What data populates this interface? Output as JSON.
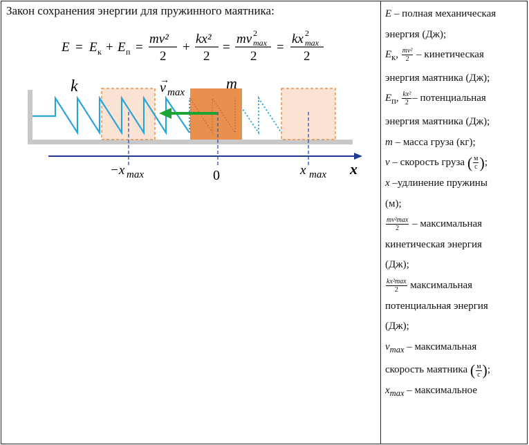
{
  "heading": "Закон сохранения энергии для пружинного маятника:",
  "formula": {
    "lhs": "E",
    "eq": "=",
    "ek": "E",
    "ek_sub": "к",
    "plus": "+",
    "ep": "E",
    "ep_sub": "п",
    "f1_num": "mv²",
    "f1_den": "2",
    "f2_num": "kx²",
    "f2_den": "2",
    "f3_num": "mv",
    "f3_sup": "2",
    "f3_sub": "max",
    "f3_den": "2",
    "f4_num": "kx",
    "f4_sup": "2",
    "f4_sub": "max",
    "f4_den": "2"
  },
  "figure": {
    "label_k": "k",
    "label_m": "m",
    "label_v": "v",
    "label_v_sub": "max",
    "label_neg_xmax": "−x",
    "label_neg_xmax_sub": "max",
    "label_zero": "0",
    "label_xmax": "x",
    "label_xmax_sub": "max",
    "label_axis": "x",
    "colors": {
      "spring": "#2aa4d8",
      "spring_light": "#7fc3e0",
      "mass": "#e9904f",
      "mass_dark": "#e08a3c",
      "ghost_fill": "#fbe3d3",
      "ghost_border": "#e9904f",
      "arrow": "#1aa436",
      "axis": "#1f3a8f",
      "guide": "#2a55b0",
      "wall": "#c8c8c8"
    }
  },
  "legend": {
    "E_desc": "– полная механическая",
    "E_desc2": "энергия (Дж);",
    "Ek_sym": "E",
    "Ek_sub": "к",
    "Ek_frac_num": "mv²",
    "Ek_frac_den": "2",
    "Ek_desc": "– кинетическая",
    "Ek_desc2": "энергия маятника (Дж);",
    "Ep_sym": "E",
    "Ep_sub": "п",
    "Ep_frac_num": "kx²",
    "Ep_frac_den": "2",
    "Ep_desc": "– потенциальная",
    "Ep_desc2": "энергия маятника (Дж);",
    "m_sym": "m",
    "m_desc": "– масса груза (кг);",
    "v_sym": "v",
    "v_desc": "– скорость груза",
    "unit_num": "м",
    "unit_den": "с",
    "x_sym": "x",
    "x_desc": "–удлинение пружины",
    "x_desc2": "(м);",
    "kmax_frac_num": "mv²max",
    "kmax_frac_den": "2",
    "kmax_desc": "– максимальная",
    "kmax_desc2": "кинетическая энергия",
    "kmax_desc3": "(Дж);",
    "pmax_frac_num": "kx²max",
    "pmax_frac_den": "2",
    "pmax_desc": "максимальная",
    "pmax_desc2": "потенциальная энергия",
    "pmax_desc3": "(Дж);",
    "vmax_sym": "v",
    "vmax_sub": "max",
    "vmax_desc": "– максимальная",
    "vmax_desc2": "скорость маятника",
    "xmax_sym": "x",
    "xmax_sub": "max",
    "xmax_desc": "– максимальное"
  }
}
